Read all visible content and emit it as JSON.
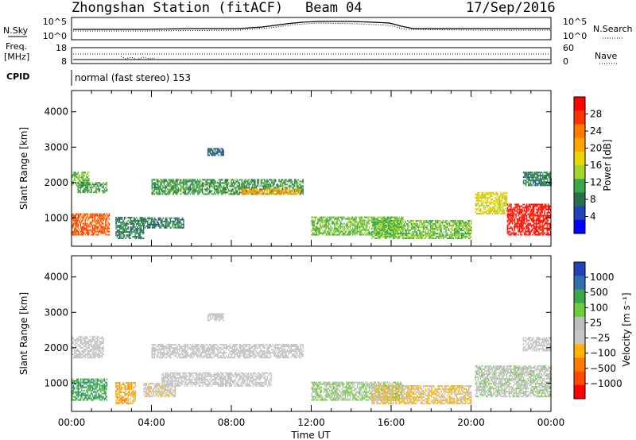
{
  "header": {
    "title": "Zhongshan Station (fitACF)",
    "beam": "Beam 04",
    "date": "17/Sep/2016"
  },
  "top_panel": {
    "left_label": "N.Sky",
    "right_label": "N.Search",
    "left_ticks": [
      "10^5",
      "10^0"
    ],
    "right_ticks": [
      "10^5",
      "10^0"
    ]
  },
  "freq_panel": {
    "left_label_1": "Freq.",
    "left_label_2": "[MHz]",
    "right_label": "Nave",
    "left_ticks": [
      "18",
      "8"
    ],
    "right_ticks": [
      "60",
      "0"
    ]
  },
  "cpid": {
    "label": "CPID",
    "text": "normal (fast stereo) 153"
  },
  "power_panel": {
    "ylabel": "Slant Range [km]",
    "yticks": [
      "4000",
      "3000",
      "2000",
      "1000"
    ],
    "colorbar_label": "Power [dB]",
    "colorbar_ticks": [
      "28",
      "24",
      "20",
      "16",
      "12",
      "8",
      "4"
    ],
    "colors": [
      "#ff0000",
      "#ff3300",
      "#ff7a00",
      "#ffa500",
      "#e8d800",
      "#a6d42c",
      "#3aa84a",
      "#2a6e4a",
      "#2442b8",
      "#0000ff"
    ]
  },
  "velocity_panel": {
    "ylabel": "Slant Range [km]",
    "yticks": [
      "4000",
      "3000",
      "2000",
      "1000"
    ],
    "colorbar_label": "Velocity [m s⁻¹]",
    "colorbar_ticks": [
      "1000",
      "500",
      "100",
      "25",
      "−25",
      "−100",
      "−500",
      "−1000"
    ],
    "colors": [
      "#2442b8",
      "#2e6fae",
      "#3aa84a",
      "#6ccd3a",
      "#bfbfbf",
      "#c7c7c7",
      "#ffb400",
      "#ff7a00",
      "#ff4a00",
      "#ff0000"
    ]
  },
  "x_axis": {
    "label": "Time UT",
    "ticks": [
      "00:00",
      "04:00",
      "08:00",
      "12:00",
      "16:00",
      "20:00",
      "00:00"
    ]
  },
  "chart_data": [
    {
      "type": "heatmap",
      "title": "Zhongshan Station (fitACF)",
      "xlabel": "Time UT",
      "ylabel": "Slant Range [km]",
      "xlim": [
        0,
        24
      ],
      "ylim": [
        200,
        4600
      ],
      "colorbar": "Power [dB]",
      "colorbar_range": [
        0,
        30
      ],
      "regions": [
        {
          "t0": 0.0,
          "t1": 1.9,
          "r0": 500,
          "r1": 1100,
          "value": 24
        },
        {
          "t0": 0.0,
          "t1": 0.9,
          "r0": 1900,
          "r1": 2300,
          "value": 12
        },
        {
          "t0": 0.3,
          "t1": 1.8,
          "r0": 1700,
          "r1": 2000,
          "value": 10
        },
        {
          "t0": 2.2,
          "t1": 3.6,
          "r0": 400,
          "r1": 1000,
          "value": 8
        },
        {
          "t0": 3.6,
          "t1": 5.6,
          "r0": 700,
          "r1": 1000,
          "value": 8
        },
        {
          "t0": 4.0,
          "t1": 11.6,
          "r0": 1650,
          "r1": 2100,
          "value": 10
        },
        {
          "t0": 8.5,
          "t1": 11.5,
          "r0": 1650,
          "r1": 1800,
          "value": 20
        },
        {
          "t0": 6.8,
          "t1": 7.6,
          "r0": 2750,
          "r1": 2950,
          "value": 6
        },
        {
          "t0": 12.0,
          "t1": 16.6,
          "r0": 500,
          "r1": 1000,
          "value": 12
        },
        {
          "t0": 15.0,
          "t1": 20.0,
          "r0": 400,
          "r1": 900,
          "value": 12
        },
        {
          "t0": 20.2,
          "t1": 21.8,
          "r0": 1100,
          "r1": 1700,
          "value": 16
        },
        {
          "t0": 21.8,
          "t1": 24.0,
          "r0": 500,
          "r1": 1400,
          "value": 28
        },
        {
          "t0": 22.6,
          "t1": 24.0,
          "r0": 1900,
          "r1": 2300,
          "value": 8
        }
      ]
    },
    {
      "type": "heatmap",
      "title": "Zhongshan Station (fitACF)",
      "xlabel": "Time UT",
      "ylabel": "Slant Range [km]",
      "xlim": [
        0,
        24
      ],
      "ylim": [
        200,
        4600
      ],
      "colorbar": "Velocity [m s⁻¹]",
      "colorbar_range": [
        -1000,
        1000
      ],
      "regions": [
        {
          "t0": 0.0,
          "t1": 1.8,
          "r0": 500,
          "r1": 1100,
          "value": 500
        },
        {
          "t0": 0.0,
          "t1": 1.6,
          "r0": 1700,
          "r1": 2300,
          "value": 0
        },
        {
          "t0": 2.2,
          "t1": 3.2,
          "r0": 400,
          "r1": 1000,
          "value": -300
        },
        {
          "t0": 3.6,
          "t1": 5.2,
          "r0": 600,
          "r1": 1000,
          "value": -100
        },
        {
          "t0": 4.0,
          "t1": 11.6,
          "r0": 1700,
          "r1": 2100,
          "value": 0
        },
        {
          "t0": 4.5,
          "t1": 10.0,
          "r0": 900,
          "r1": 1300,
          "value": 0
        },
        {
          "t0": 6.8,
          "t1": 7.6,
          "r0": 2750,
          "r1": 2950,
          "value": 0
        },
        {
          "t0": 12.0,
          "t1": 16.6,
          "r0": 500,
          "r1": 1000,
          "value": 200
        },
        {
          "t0": 15.0,
          "t1": 20.0,
          "r0": 400,
          "r1": 900,
          "value": -200
        },
        {
          "t0": 20.2,
          "t1": 24.0,
          "r0": 600,
          "r1": 1500,
          "value": 100
        },
        {
          "t0": 22.6,
          "t1": 24.0,
          "r0": 1900,
          "r1": 2300,
          "value": 0
        }
      ]
    }
  ]
}
